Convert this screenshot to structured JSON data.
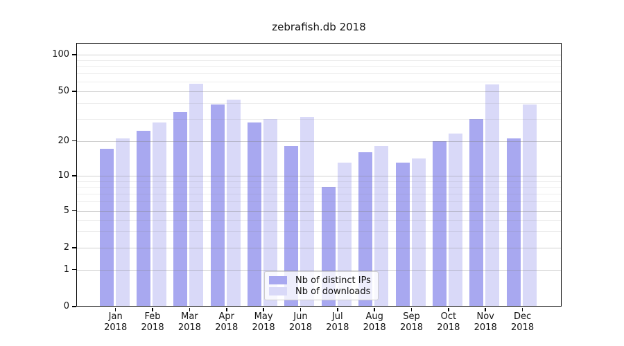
{
  "title": "zebrafish.db 2018",
  "chart_data": {
    "type": "bar",
    "title": "zebrafish.db 2018",
    "categories": [
      "Jan",
      "Feb",
      "Mar",
      "Apr",
      "May",
      "Jun",
      "Jul",
      "Aug",
      "Sep",
      "Oct",
      "Nov",
      "Dec"
    ],
    "year": "2018",
    "series": [
      {
        "name": "Nb of distinct IPs",
        "color": "#a8a8f0",
        "values": [
          17,
          24,
          34,
          39,
          28,
          18,
          8,
          16,
          13,
          20,
          30,
          21
        ]
      },
      {
        "name": "Nb of downloads",
        "color": "#d9d9f8",
        "values": [
          21,
          28,
          58,
          43,
          30,
          31,
          13,
          18,
          14,
          23,
          57,
          39
        ]
      }
    ],
    "yscale": "symlog",
    "y_ticks": [
      100,
      50,
      20,
      10,
      5,
      2,
      1,
      0
    ],
    "y_minor_gridlines": [
      90,
      80,
      70,
      60,
      40,
      30,
      9,
      8,
      7,
      6,
      4,
      3
    ],
    "ylim_top_value": 120,
    "grid": "on",
    "legend_position": "lower center"
  }
}
